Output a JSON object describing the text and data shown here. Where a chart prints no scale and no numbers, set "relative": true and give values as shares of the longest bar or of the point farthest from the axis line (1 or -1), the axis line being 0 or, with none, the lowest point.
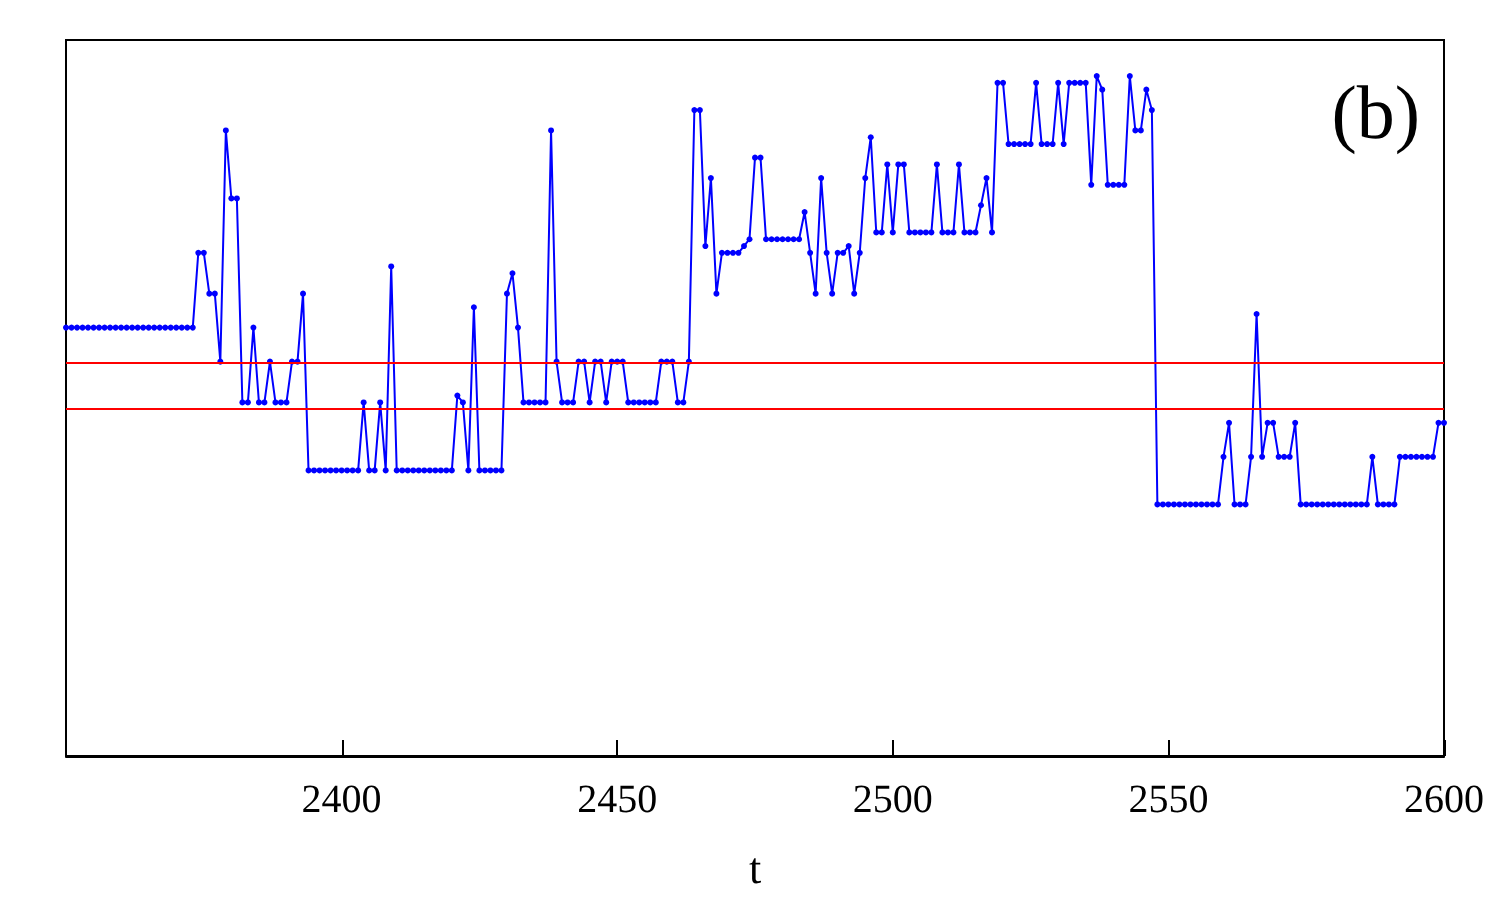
{
  "chart_data": {
    "type": "line",
    "xlabel": "t",
    "annotations": [
      "(b)"
    ],
    "relative": true,
    "marker": "circle",
    "xlim": [
      2350,
      2600
    ],
    "xticks": [
      2400,
      2450,
      2500,
      2550,
      2600
    ],
    "x": [
      2350,
      2351,
      2352,
      2353,
      2354,
      2355,
      2356,
      2357,
      2358,
      2359,
      2360,
      2361,
      2362,
      2363,
      2364,
      2365,
      2366,
      2367,
      2368,
      2369,
      2370,
      2371,
      2372,
      2373,
      2374,
      2375,
      2376,
      2377,
      2378,
      2379,
      2380,
      2381,
      2382,
      2383,
      2384,
      2385,
      2386,
      2387,
      2388,
      2389,
      2390,
      2391,
      2392,
      2393,
      2394,
      2395,
      2396,
      2397,
      2398,
      2399,
      2400,
      2401,
      2402,
      2403,
      2404,
      2405,
      2406,
      2407,
      2408,
      2409,
      2410,
      2411,
      2412,
      2413,
      2414,
      2415,
      2416,
      2417,
      2418,
      2419,
      2420,
      2421,
      2422,
      2423,
      2424,
      2425,
      2426,
      2427,
      2428,
      2429,
      2430,
      2431,
      2432,
      2433,
      2434,
      2435,
      2436,
      2437,
      2438,
      2439,
      2440,
      2441,
      2442,
      2443,
      2444,
      2445,
      2446,
      2447,
      2448,
      2449,
      2450,
      2451,
      2452,
      2453,
      2454,
      2455,
      2456,
      2457,
      2458,
      2459,
      2460,
      2461,
      2462,
      2463,
      2464,
      2465,
      2466,
      2467,
      2468,
      2469,
      2470,
      2471,
      2472,
      2473,
      2474,
      2475,
      2476,
      2477,
      2478,
      2479,
      2480,
      2481,
      2482,
      2483,
      2484,
      2485,
      2486,
      2487,
      2488,
      2489,
      2490,
      2491,
      2492,
      2493,
      2494,
      2495,
      2496,
      2497,
      2498,
      2499,
      2500,
      2501,
      2502,
      2503,
      2504,
      2505,
      2506,
      2507,
      2508,
      2509,
      2510,
      2511,
      2512,
      2513,
      2514,
      2515,
      2516,
      2517,
      2518,
      2519,
      2520,
      2521,
      2522,
      2523,
      2524,
      2525,
      2526,
      2527,
      2528,
      2529,
      2530,
      2531,
      2532,
      2533,
      2534,
      2535,
      2536,
      2537,
      2538,
      2539,
      2540,
      2541,
      2542,
      2543,
      2544,
      2545,
      2546,
      2547,
      2548,
      2549,
      2550,
      2551,
      2552,
      2553,
      2554,
      2555,
      2556,
      2557,
      2558,
      2559,
      2560,
      2561,
      2562,
      2563,
      2564,
      2565,
      2566,
      2567,
      2568,
      2569,
      2570,
      2571,
      2572,
      2573,
      2574,
      2575,
      2576,
      2577,
      2578,
      2579,
      2580,
      2581,
      2582,
      2583,
      2584,
      2585,
      2586,
      2587,
      2588,
      2589,
      2590,
      2591,
      2592,
      2593,
      2594,
      2595,
      2596,
      2597,
      2598,
      2599,
      2600
    ],
    "series": [
      {
        "color": "#0000ff",
        "values": [
          0.63,
          0.63,
          0.63,
          0.63,
          0.63,
          0.63,
          0.63,
          0.63,
          0.63,
          0.63,
          0.63,
          0.63,
          0.63,
          0.63,
          0.63,
          0.63,
          0.63,
          0.63,
          0.63,
          0.63,
          0.63,
          0.63,
          0.63,
          0.63,
          0.74,
          0.74,
          0.68,
          0.68,
          0.58,
          0.92,
          0.82,
          0.82,
          0.52,
          0.52,
          0.63,
          0.52,
          0.52,
          0.58,
          0.52,
          0.52,
          0.52,
          0.58,
          0.58,
          0.68,
          0.42,
          0.42,
          0.42,
          0.42,
          0.42,
          0.42,
          0.42,
          0.42,
          0.42,
          0.42,
          0.52,
          0.42,
          0.42,
          0.52,
          0.42,
          0.72,
          0.42,
          0.42,
          0.42,
          0.42,
          0.42,
          0.42,
          0.42,
          0.42,
          0.42,
          0.42,
          0.42,
          0.53,
          0.52,
          0.42,
          0.66,
          0.42,
          0.42,
          0.42,
          0.42,
          0.42,
          0.68,
          0.71,
          0.63,
          0.52,
          0.52,
          0.52,
          0.52,
          0.52,
          0.92,
          0.58,
          0.52,
          0.52,
          0.52,
          0.58,
          0.58,
          0.52,
          0.58,
          0.58,
          0.52,
          0.58,
          0.58,
          0.58,
          0.52,
          0.52,
          0.52,
          0.52,
          0.52,
          0.52,
          0.58,
          0.58,
          0.58,
          0.52,
          0.52,
          0.58,
          0.95,
          0.95,
          0.75,
          0.85,
          0.68,
          0.74,
          0.74,
          0.74,
          0.74,
          0.75,
          0.76,
          0.88,
          0.88,
          0.76,
          0.76,
          0.76,
          0.76,
          0.76,
          0.76,
          0.76,
          0.8,
          0.74,
          0.68,
          0.85,
          0.74,
          0.68,
          0.74,
          0.74,
          0.75,
          0.68,
          0.74,
          0.85,
          0.91,
          0.77,
          0.77,
          0.87,
          0.77,
          0.87,
          0.87,
          0.77,
          0.77,
          0.77,
          0.77,
          0.77,
          0.87,
          0.77,
          0.77,
          0.77,
          0.87,
          0.77,
          0.77,
          0.77,
          0.81,
          0.85,
          0.77,
          0.99,
          0.99,
          0.9,
          0.9,
          0.9,
          0.9,
          0.9,
          0.99,
          0.9,
          0.9,
          0.9,
          0.99,
          0.9,
          0.99,
          0.99,
          0.99,
          0.99,
          0.84,
          1,
          0.98,
          0.84,
          0.84,
          0.84,
          0.84,
          1,
          0.92,
          0.92,
          0.98,
          0.95,
          0.37,
          0.37,
          0.37,
          0.37,
          0.37,
          0.37,
          0.37,
          0.37,
          0.37,
          0.37,
          0.37,
          0.37,
          0.44,
          0.49,
          0.37,
          0.37,
          0.37,
          0.44,
          0.65,
          0.44,
          0.49,
          0.49,
          0.44,
          0.44,
          0.44,
          0.49,
          0.37,
          0.37,
          0.37,
          0.37,
          0.37,
          0.37,
          0.37,
          0.37,
          0.37,
          0.37,
          0.37,
          0.37,
          0.37,
          0.44,
          0.37,
          0.37,
          0.37,
          0.37,
          0.44,
          0.44,
          0.44,
          0.44,
          0.44,
          0.44,
          0.44,
          0.49,
          0.49
        ]
      }
    ],
    "ref_lines": [
      {
        "axis": "y",
        "value": 0.58,
        "color": "#ff0000"
      },
      {
        "axis": "y",
        "value": 0.51,
        "color": "#ff0000"
      }
    ]
  }
}
